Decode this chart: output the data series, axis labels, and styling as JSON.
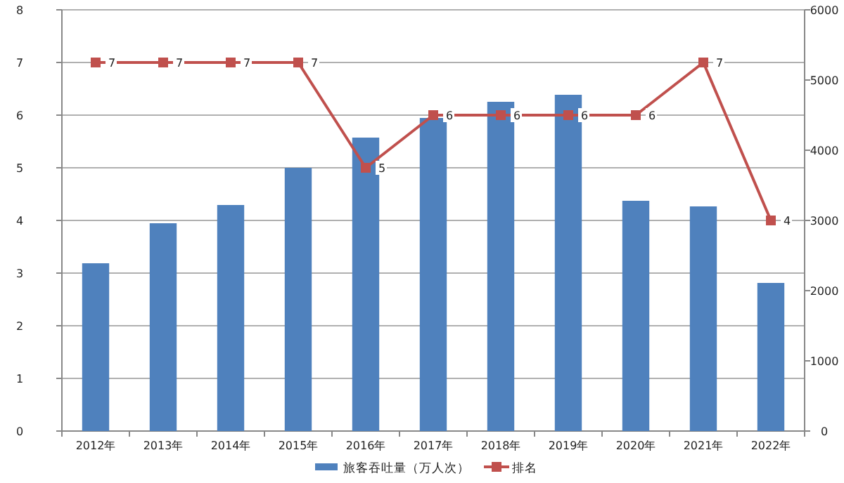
{
  "chart_data": {
    "type": "bar",
    "categories": [
      "2012年",
      "2013年",
      "2014年",
      "2015年",
      "2016年",
      "2017年",
      "2018年",
      "2019年",
      "2020年",
      "2021年",
      "2022年"
    ],
    "series": [
      {
        "name": "旅客吞吐量（万人次）",
        "axis": "y2",
        "color": "#4f81bd",
        "values": [
          2390,
          2960,
          3220,
          3750,
          4180,
          4460,
          4690,
          4790,
          3280,
          3200,
          2110
        ]
      },
      {
        "name": "排名",
        "type": "line",
        "axis": "y",
        "color": "#c0504d",
        "marker": "square",
        "line_style": "solid",
        "values": [
          7,
          7,
          7,
          7,
          5,
          6,
          6,
          6,
          6,
          7,
          4
        ],
        "value_labels": [
          "7",
          "7",
          "7",
          "7",
          "5",
          "6",
          "6",
          "6",
          "6",
          "7",
          "4"
        ]
      }
    ],
    "ylim": [
      0,
      8
    ],
    "yticks": [
      0,
      1,
      2,
      3,
      4,
      5,
      6,
      7,
      8
    ],
    "y2lim": [
      0,
      6000
    ],
    "y2ticks": [
      0,
      1000,
      2000,
      3000,
      4000,
      5000,
      6000
    ],
    "grid": "y",
    "legend": "bottom"
  }
}
